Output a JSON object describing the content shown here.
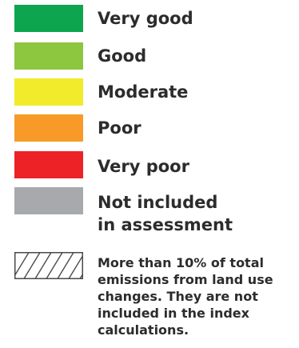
{
  "legend": {
    "items": [
      {
        "label": "Very good",
        "color": "#0da54e"
      },
      {
        "label": "Good",
        "color": "#8dc63f"
      },
      {
        "label": "Moderate",
        "color": "#f1eb2b"
      },
      {
        "label": "Poor",
        "color": "#f79a28"
      },
      {
        "label": "Very poor",
        "color": "#ec2227"
      },
      {
        "label_line1": "Not included",
        "label_line2": "in assessment",
        "color": "#a7a9ac"
      }
    ],
    "hatched": {
      "icon": "diagonal-hatch-icon",
      "note": "More than 10% of total emissions from land use changes. They are not included in the index calculations."
    }
  }
}
